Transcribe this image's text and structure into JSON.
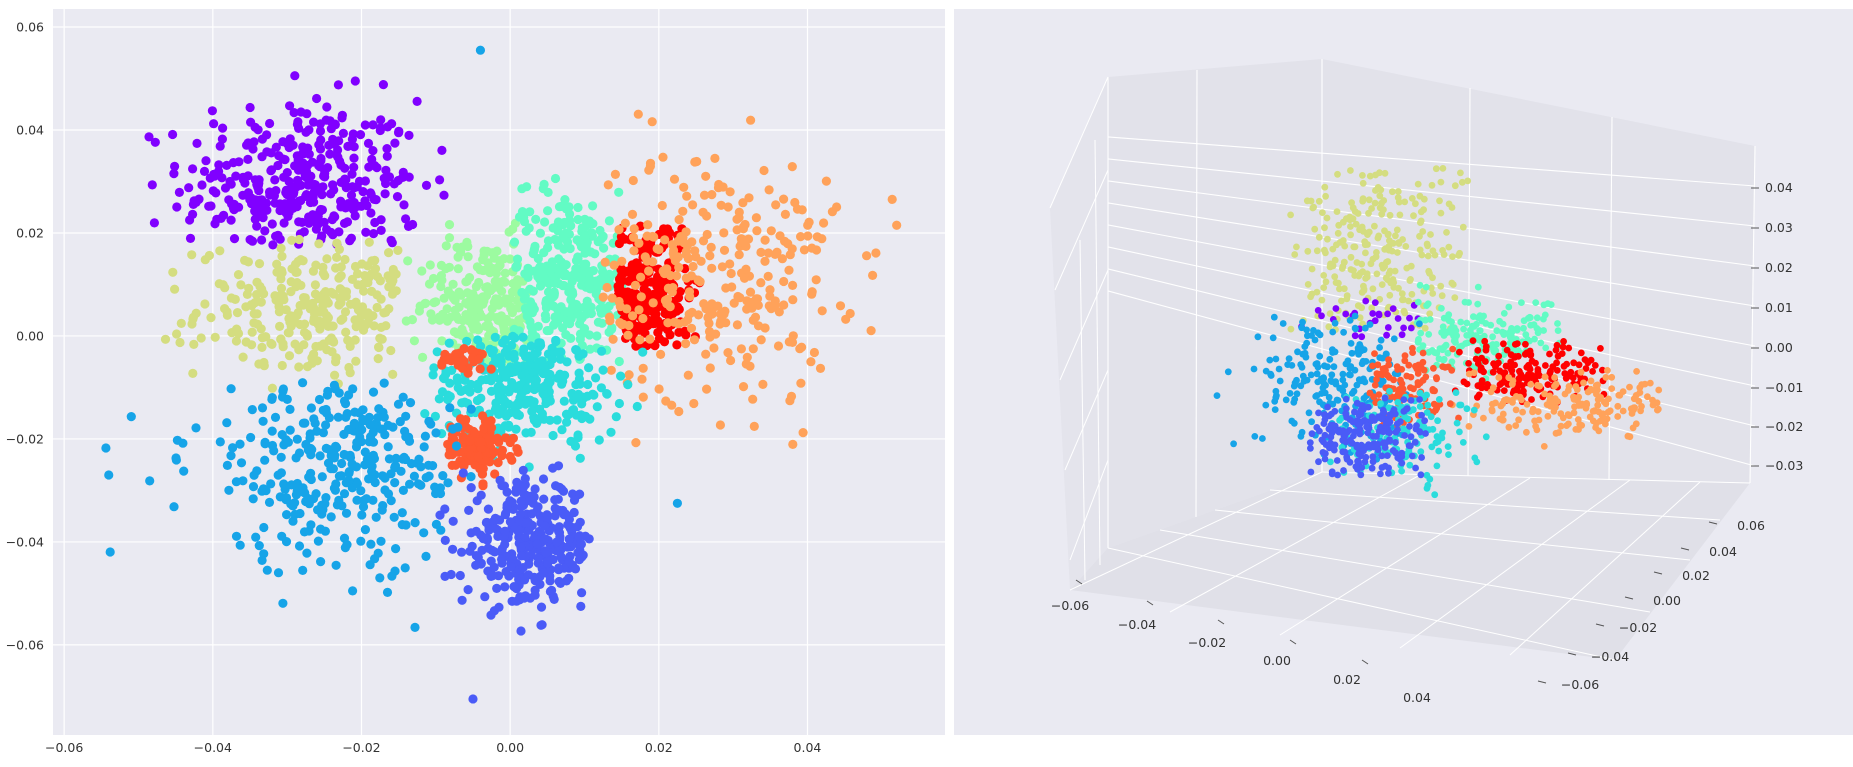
{
  "chart_data": [
    {
      "type": "scatter",
      "title": "",
      "xlabel": "",
      "ylabel": "",
      "xlim": [
        -0.0615,
        0.0585
      ],
      "ylim": [
        -0.0775,
        0.0635
      ],
      "grid": true,
      "xticks": [
        "−0.06",
        "−0.04",
        "−0.02",
        "0.00",
        "0.02",
        "0.04"
      ],
      "yticks": [
        "0.06",
        "0.04",
        "0.02",
        "0.00",
        "−0.02",
        "−0.04",
        "−0.06"
      ],
      "xtick_values": [
        -0.06,
        -0.04,
        -0.02,
        0.0,
        0.02,
        0.04
      ],
      "ytick_values": [
        0.06,
        0.04,
        0.02,
        0.0,
        -0.02,
        -0.04,
        -0.06
      ],
      "clusters": [
        {
          "color": "#8000ff",
          "center": [
            -0.028,
            0.029
          ],
          "spread": [
            0.008,
            0.0085
          ],
          "count": 360,
          "clip": [
            -0.055,
            -0.0085,
            0.0175,
            0.057
          ]
        },
        {
          "color": "#d4dd80",
          "center": [
            -0.025,
            0.005
          ],
          "spread": [
            0.0085,
            0.0065
          ],
          "count": 280,
          "clip": [
            -0.051,
            -0.015,
            -0.011,
            0.019
          ]
        },
        {
          "color": "#9cfba0",
          "center": [
            -0.0035,
            0.006
          ],
          "spread": [
            0.0045,
            0.0065
          ],
          "count": 230,
          "clip": [
            -0.0145,
            0.0025,
            -0.006,
            0.022
          ]
        },
        {
          "color": "#62fbc4",
          "center": [
            0.0075,
            0.011
          ],
          "spread": [
            0.005,
            0.0085
          ],
          "count": 300,
          "clip": [
            0.0005,
            0.0155,
            -0.006,
            0.031
          ]
        },
        {
          "color": "#ff0000",
          "center": [
            0.0185,
            0.0085
          ],
          "spread": [
            0.0028,
            0.0068
          ],
          "count": 260,
          "clip": [
            0.0145,
            0.0265,
            -0.002,
            0.022
          ]
        },
        {
          "color": "#ffa25a",
          "center": [
            0.027,
            0.012
          ],
          "spread": [
            0.0085,
            0.0125
          ],
          "count": 300,
          "clip": [
            0.0125,
            0.053,
            -0.025,
            0.044
          ]
        },
        {
          "color": "#2adcdc",
          "center": [
            0.002,
            -0.0095
          ],
          "spread": [
            0.0065,
            0.0055
          ],
          "count": 300,
          "clip": [
            -0.013,
            0.0185,
            -0.03,
            0.0
          ]
        },
        {
          "color": "#ff5a31",
          "center": [
            -0.0048,
            -0.0215
          ],
          "spread": [
            0.0025,
            0.0033
          ],
          "count": 120,
          "clip": [
            -0.0085,
            0.0035,
            -0.0295,
            -0.015
          ]
        },
        {
          "color": "#ff5a31",
          "center": [
            -0.0065,
            -0.0045
          ],
          "spread": [
            0.0022,
            0.0011
          ],
          "count": 40,
          "clip": [
            -0.0095,
            -0.0025,
            -0.0075,
            -0.0015
          ]
        },
        {
          "color": "#16a4e8",
          "center": [
            -0.022,
            -0.024
          ],
          "spread": [
            0.0105,
            0.0105
          ],
          "count": 330,
          "clip": [
            -0.0555,
            -0.005,
            -0.0575,
            -0.009
          ]
        },
        {
          "color": "#4a5bf7",
          "center": [
            0.0025,
            -0.0405
          ],
          "spread": [
            0.0045,
            0.006
          ],
          "count": 320,
          "clip": [
            -0.0095,
            0.0145,
            -0.0575,
            -0.0245
          ]
        }
      ],
      "outliers": [
        {
          "color": "#16a4e8",
          "x": -0.004,
          "y": 0.0555
        },
        {
          "color": "#4a5bf7",
          "x": -0.005,
          "y": -0.0705
        },
        {
          "color": "#16a4e8",
          "x": -0.054,
          "y": -0.027
        },
        {
          "color": "#16a4e8",
          "x": 0.0225,
          "y": -0.0325
        },
        {
          "color": "#ffa25a",
          "x": 0.052,
          "y": 0.0215
        }
      ]
    },
    {
      "type": "scatter",
      "title": "",
      "projection": "3d",
      "grid": true,
      "xticks": [
        "−0.06",
        "−0.04",
        "−0.02",
        "0.00",
        "0.02",
        "0.04"
      ],
      "yticks": [
        "0.06",
        "0.04",
        "0.02",
        "0.00",
        "−0.02",
        "−0.04",
        "−0.06"
      ],
      "zticks": [
        "0.04",
        "0.03",
        "0.02",
        "0.01",
        "0.00",
        "−0.01",
        "−0.02",
        "−0.03"
      ],
      "clusters": [
        {
          "color": "#d4dd80",
          "name_hint": "top",
          "count": 260
        },
        {
          "color": "#8000ff",
          "count": 30
        },
        {
          "color": "#62fbc4",
          "count": 180
        },
        {
          "color": "#ff0000",
          "count": 160
        },
        {
          "color": "#ffa25a",
          "count": 170
        },
        {
          "color": "#16a4e8",
          "count": 220
        },
        {
          "color": "#ff5a31",
          "count": 110
        },
        {
          "color": "#2adcdc",
          "count": 120
        },
        {
          "color": "#4a5bf7",
          "count": 200
        }
      ]
    }
  ],
  "colors": {
    "panel_bg": "#eaeaf2",
    "grid": "#ffffff",
    "pane_wall": "#e6e6ee"
  }
}
